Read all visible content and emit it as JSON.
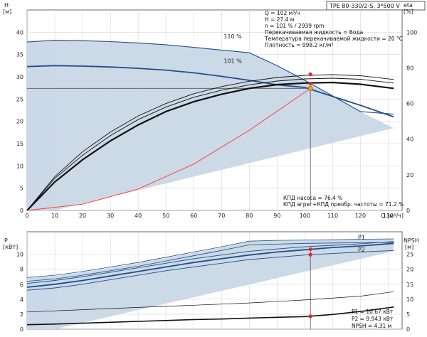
{
  "pump_model": "TPE 80-330/2-S, 3*500 V",
  "colors": {
    "band_fill": "#c9d7e6",
    "band_light": "#e4ecf4",
    "curve_blue": "#1f4f8a",
    "curve_black": "#111111",
    "system_curve": "#ff3b30",
    "op_point": "#e6a817",
    "marker": "#e3242b"
  },
  "info_top": [
    "Q = 102 м³/ч",
    "H = 27.4 м",
    "n = 101 % / 2939 rpm",
    "Перекачиваемая жидкость = Вода",
    "Температура перекачиваемой жидкости = 20 °C",
    "Плотность = 998.2 кг/м³"
  ],
  "info_eff": [
    "КПД насоса = 76.4 %",
    "КПД агрег+КПД преобр. частоты = 71.2 %"
  ],
  "info_bottom": [
    "P1 = 10.67 кВт",
    "P2 = 9.943 кВт",
    "NPSH = 4.31 м"
  ],
  "chart_data": [
    {
      "type": "line",
      "name": "head-efficiency",
      "x_axis": {
        "label": "Q [м³/ч]",
        "lim": [
          0,
          135
        ],
        "ticks": [
          0,
          10,
          20,
          30,
          40,
          50,
          60,
          70,
          80,
          90,
          100,
          110,
          120,
          130
        ]
      },
      "y_axis_left": {
        "label": "H",
        "unit": "[м]",
        "lim": [
          0,
          45
        ],
        "ticks": [
          0,
          5,
          10,
          15,
          20,
          25,
          30,
          35,
          40
        ]
      },
      "y_axis_right": {
        "label": "eta",
        "unit": "[%]",
        "lim": [
          0,
          112.5
        ],
        "ticks": [
          0,
          20,
          40,
          60,
          80,
          100
        ]
      },
      "grid": true,
      "curve_labels": [
        {
          "text": "110 %",
          "x": 38,
          "y": 38.6
        },
        {
          "text": "101 %",
          "x": 38,
          "y": 33.1
        }
      ],
      "band_upper": {
        "x": [
          0,
          10,
          20,
          30,
          40,
          50,
          60,
          70,
          80,
          90,
          100,
          110,
          120,
          132
        ],
        "y": [
          37.8,
          38.2,
          38.1,
          37.9,
          37.6,
          37.2,
          36.6,
          36.0,
          35.4,
          32.5,
          29.2,
          25.7,
          22.2,
          18.5
        ]
      },
      "band_lower": {
        "x": [
          0,
          10,
          132
        ],
        "y": [
          0,
          0,
          18.5
        ]
      },
      "h_110": {
        "x": [
          0,
          10,
          20,
          30,
          40,
          50,
          60,
          70,
          80,
          90,
          100,
          110,
          120,
          132
        ],
        "y": [
          37.8,
          38.2,
          38.1,
          37.9,
          37.6,
          37.2,
          36.6,
          36.0,
          35.4,
          32.5,
          29.2,
          25.7,
          22.2,
          21.6
        ]
      },
      "h_101": {
        "x": [
          0,
          10,
          20,
          30,
          40,
          50,
          60,
          70,
          80,
          90,
          100,
          110,
          120,
          132
        ],
        "y": [
          32.3,
          32.5,
          32.4,
          32.2,
          31.9,
          31.5,
          30.9,
          30.1,
          29.2,
          28.2,
          27.6,
          25.6,
          23.6,
          21.0
        ]
      },
      "eta_curves": [
        {
          "x": [
            0,
            10,
            20,
            30,
            40,
            50,
            60,
            70,
            80,
            90,
            100,
            110,
            120,
            132
          ],
          "y": [
            0,
            19,
            33,
            44,
            53,
            60,
            65.5,
            69.5,
            72.5,
            74.6,
            75.8,
            76.2,
            75.6,
            73.5
          ]
        },
        {
          "x": [
            0,
            10,
            20,
            30,
            40,
            50,
            60,
            70,
            80,
            90,
            100,
            110,
            120,
            132
          ],
          "y": [
            0,
            18,
            31,
            42,
            51,
            58,
            63.5,
            67.5,
            70.5,
            72.6,
            73.8,
            74.2,
            73.6,
            71.5
          ]
        },
        {
          "x": [
            0,
            10,
            20,
            30,
            40,
            50,
            60,
            70,
            80,
            90,
            100,
            110,
            120,
            132
          ],
          "y": [
            0,
            16,
            28.5,
            39,
            48,
            55.5,
            61,
            65.2,
            68.5,
            70.6,
            71.5,
            71.8,
            70.8,
            68.5
          ]
        }
      ],
      "system_curve": {
        "x": [
          0,
          20,
          40,
          60,
          80,
          102
        ],
        "y": [
          0,
          1.4,
          4.8,
          10.4,
          18.0,
          27.4
        ]
      },
      "operating_point": {
        "q": 102,
        "h": 27.4,
        "eta_pump": 76.4,
        "eta_total": 71.2
      }
    },
    {
      "type": "line",
      "name": "power-npsh",
      "x_axis": {
        "lim": [
          0,
          135
        ]
      },
      "y_axis_left": {
        "label": "P",
        "unit": "[кВт]",
        "lim": [
          0,
          13
        ],
        "ticks": [
          0,
          2,
          4,
          6,
          8,
          10
        ]
      },
      "y_axis_right": {
        "label": "NPSH",
        "unit": "[м]",
        "lim": [
          0,
          32.5
        ],
        "ticks": [
          0,
          5,
          10,
          15,
          20,
          25
        ]
      },
      "grid": true,
      "series_labels": [
        "P1",
        "P2"
      ],
      "band_upper": {
        "x": [
          0,
          10,
          20,
          30,
          40,
          50,
          60,
          70,
          80,
          90,
          100,
          110,
          120,
          132
        ],
        "y": [
          6.8,
          7.1,
          7.6,
          8.2,
          8.8,
          9.5,
          10.2,
          10.9,
          11.7,
          11.8,
          11.9,
          11.9,
          11.95,
          12.0
        ]
      },
      "band_lower": {
        "x": [
          0,
          10,
          132
        ],
        "y": [
          0,
          0,
          10.4
        ]
      },
      "p_lines_110": [
        {
          "x": [
            0,
            10,
            20,
            30,
            40,
            50,
            60,
            70,
            80,
            90,
            100,
            110,
            120,
            132
          ],
          "y": [
            6.9,
            7.2,
            7.7,
            8.3,
            8.9,
            9.6,
            10.3,
            11.0,
            11.75,
            11.85,
            11.9,
            11.95,
            12.0,
            12.05
          ]
        },
        {
          "x": [
            0,
            10,
            20,
            30,
            40,
            50,
            60,
            70,
            80,
            90,
            100,
            110,
            120,
            132
          ],
          "y": [
            6.4,
            6.7,
            7.2,
            7.8,
            8.4,
            9.1,
            9.8,
            10.5,
            11.25,
            11.35,
            11.45,
            11.5,
            11.55,
            11.6
          ]
        }
      ],
      "p1_101": {
        "x": [
          0,
          10,
          20,
          30,
          40,
          50,
          60,
          70,
          80,
          90,
          100,
          110,
          120,
          132
        ],
        "y": [
          5.6,
          6.0,
          6.5,
          7.1,
          7.7,
          8.3,
          8.9,
          9.4,
          9.9,
          10.3,
          10.6,
          10.9,
          11.1,
          11.45
        ]
      },
      "p_lines_101_thin": [
        {
          "x": [
            0,
            10,
            20,
            30,
            40,
            50,
            60,
            70,
            80,
            90,
            100,
            110,
            120,
            132
          ],
          "y": [
            5.2,
            5.5,
            6.0,
            6.6,
            7.2,
            7.8,
            8.3,
            8.8,
            9.3,
            9.6,
            9.9,
            10.1,
            10.3,
            10.5
          ]
        },
        {
          "x": [
            0,
            10,
            20,
            30,
            40,
            50,
            60,
            70,
            80,
            90,
            100,
            110,
            120,
            132
          ],
          "y": [
            6.1,
            6.5,
            7.0,
            7.6,
            8.2,
            8.8,
            9.4,
            9.9,
            10.4,
            10.7,
            11.0,
            11.2,
            11.4,
            11.7
          ]
        }
      ],
      "npsh": {
        "x": [
          0,
          10,
          20,
          30,
          40,
          50,
          60,
          70,
          80,
          90,
          100,
          110,
          120,
          132
        ],
        "y": [
          1.5,
          1.7,
          2.0,
          2.3,
          2.6,
          2.9,
          3.2,
          3.4,
          3.7,
          3.95,
          4.2,
          4.9,
          5.9,
          7.4
        ]
      },
      "npsh_upper": {
        "x": [
          0,
          20,
          40,
          60,
          80,
          100,
          120,
          132
        ],
        "y": [
          2.3,
          2.6,
          2.9,
          3.2,
          3.5,
          3.9,
          4.4,
          5.0
        ]
      },
      "markers": [
        {
          "q": 102,
          "p": 10.67
        },
        {
          "q": 102,
          "p": 9.943
        },
        {
          "q": 102,
          "npsh": 4.31
        }
      ]
    }
  ]
}
